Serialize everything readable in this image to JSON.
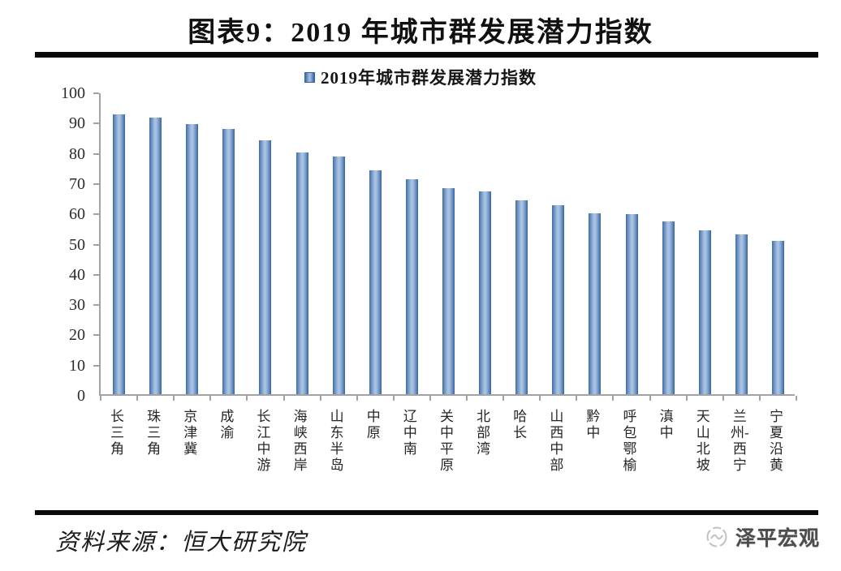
{
  "page": {
    "title": "图表9：2019 年城市群发展潜力指数",
    "source_note": "资料来源：恒大研究院",
    "brand": "泽平宏观"
  },
  "chart_data": {
    "type": "bar",
    "title": "2019年城市群发展潜力指数",
    "legend": [
      "2019年城市群发展潜力指数"
    ],
    "legend_position": "top-center",
    "categories": [
      "长三角",
      "珠三角",
      "京津冀",
      "成渝",
      "长江中游",
      "海峡西岸",
      "山东半岛",
      "中原",
      "辽中南",
      "关中平原",
      "北部湾",
      "哈长",
      "山西中部",
      "黔中",
      "呼包鄂榆",
      "滇中",
      "天山北坡",
      "兰州-西宁",
      "宁夏沿黄"
    ],
    "values": [
      92.4,
      91.4,
      89.4,
      87.8,
      84.0,
      80.0,
      78.6,
      74.1,
      71.1,
      68.0,
      66.9,
      64.2,
      62.4,
      59.9,
      59.4,
      57.2,
      54.1,
      52.9,
      50.6
    ],
    "xlabel": "",
    "ylabel": "",
    "ylim": [
      0,
      100
    ],
    "yticks": [
      0,
      10,
      20,
      30,
      40,
      50,
      60,
      70,
      80,
      90,
      100
    ],
    "grid": false,
    "bar_color": "#4f81bd",
    "bar_gradient": [
      "#3e6da8",
      "#a9c2e1",
      "#35639f"
    ],
    "axis_color": "#a2a2a2",
    "label_color": "#262626"
  }
}
